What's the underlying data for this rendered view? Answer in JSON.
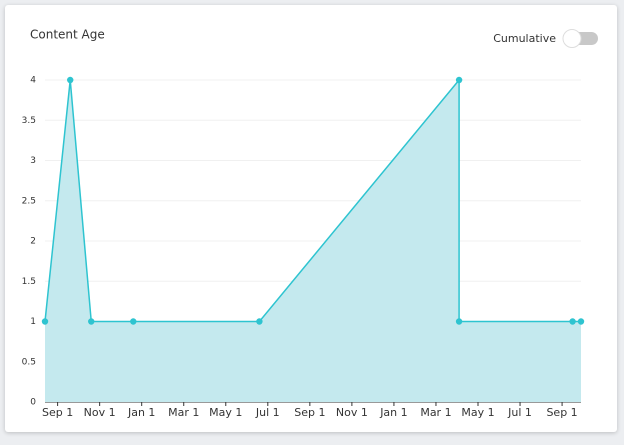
{
  "chart_data": {
    "type": "area",
    "title": "Content Age",
    "x": [
      -0.6,
      0.6,
      1.6,
      3.6,
      9.6,
      19.1,
      19.1,
      24.5,
      24.9
    ],
    "values": [
      1,
      4,
      1,
      1,
      1,
      4,
      1,
      1,
      1
    ],
    "color": "#2ec4d0",
    "fill": "#c4e9ee",
    "xlim": [
      -0.6,
      24.9
    ],
    "xticks": [
      {
        "value": 0,
        "label": "Sep 1"
      },
      {
        "value": 2,
        "label": "Nov 1"
      },
      {
        "value": 4,
        "label": "Jan 1"
      },
      {
        "value": 6,
        "label": "Mar 1"
      },
      {
        "value": 8,
        "label": "May 1"
      },
      {
        "value": 10,
        "label": "Jul 1"
      },
      {
        "value": 12,
        "label": "Sep 1"
      },
      {
        "value": 14,
        "label": "Nov 1"
      },
      {
        "value": 16,
        "label": "Jan 1"
      },
      {
        "value": 18,
        "label": "Mar 1"
      },
      {
        "value": 20,
        "label": "May 1"
      },
      {
        "value": 22,
        "label": "Jul 1"
      },
      {
        "value": 24,
        "label": "Sep 1"
      }
    ],
    "ylim": [
      0,
      4
    ],
    "yticks": [
      0,
      0.5,
      1,
      1.5,
      2,
      2.5,
      3,
      3.5,
      4
    ],
    "grid": true
  },
  "toggle": {
    "label": "Cumulative",
    "checked": false
  }
}
